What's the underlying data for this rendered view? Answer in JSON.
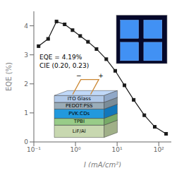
{
  "chart_data": {
    "type": "line",
    "xlabel": "J (mA/cm²)",
    "ylabel": "EQE (%)",
    "x": [
      0.13,
      0.22,
      0.35,
      0.55,
      0.85,
      1.3,
      2.0,
      3.2,
      5.5,
      9.0,
      15,
      25,
      45,
      80,
      150
    ],
    "series": [
      {
        "color": "#1a1a1a",
        "marker": "square",
        "values": [
          3.3,
          3.55,
          4.15,
          4.05,
          3.85,
          3.65,
          3.45,
          3.2,
          2.85,
          2.45,
          1.95,
          1.45,
          0.92,
          0.52,
          0.28
        ]
      }
    ],
    "log": "x",
    "xlim": [
      0.1,
      200
    ],
    "ylim": [
      0,
      4.5
    ],
    "xticks": [
      {
        "value": 0.1,
        "label": "10⁻¹"
      },
      {
        "value": 1,
        "label": "10⁰"
      },
      {
        "value": 10,
        "label": "10¹"
      },
      {
        "value": 100,
        "label": "10²"
      }
    ],
    "yticks": [
      0,
      1,
      2,
      3,
      4
    ],
    "grid": false,
    "annotations": [
      "EQE = 4.19%",
      "CIE (0.20, 0.23)",
      "LiF/Al",
      "TPBI",
      "PVK:CDs",
      "PEDOT:PSS",
      "ITO Glass",
      "−",
      "+"
    ]
  }
}
